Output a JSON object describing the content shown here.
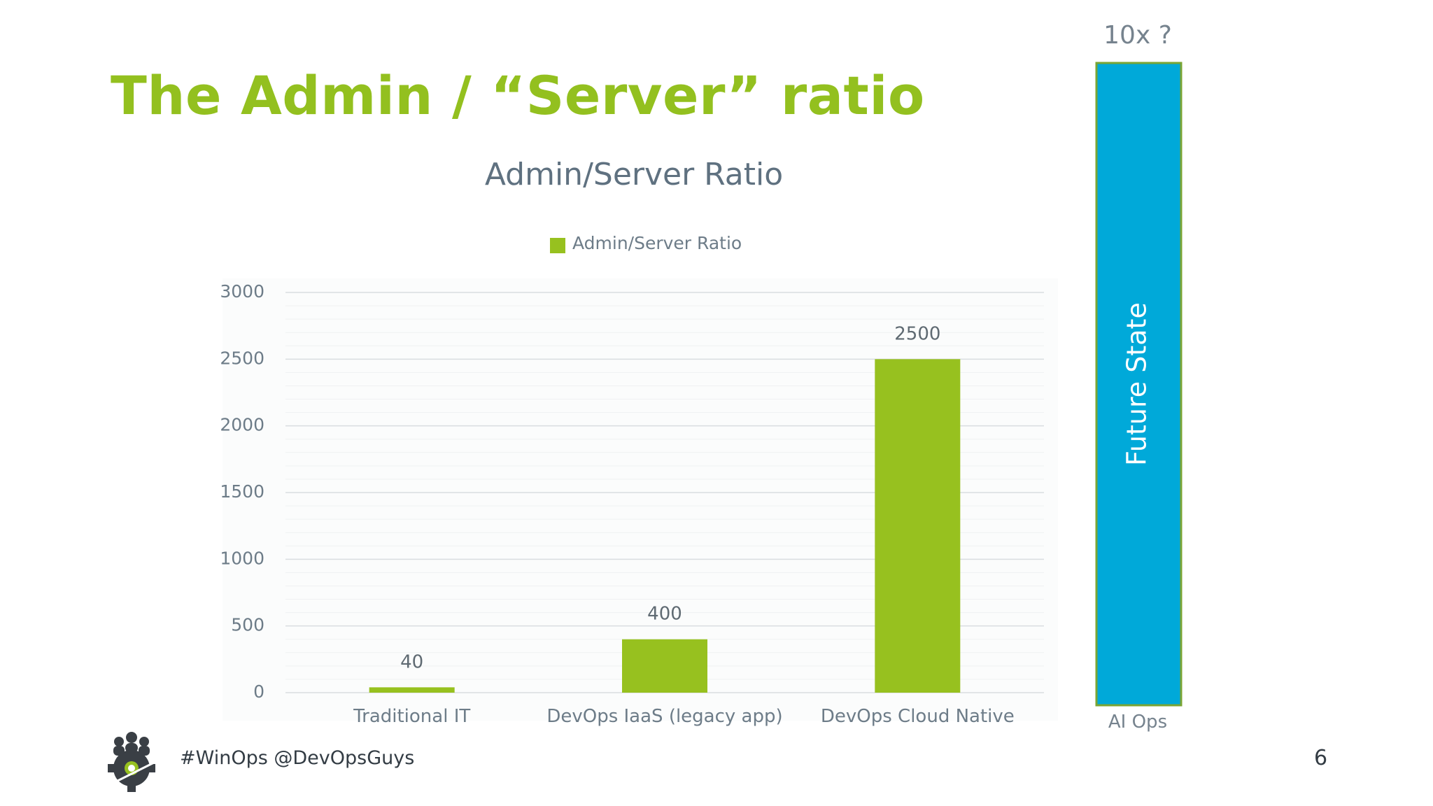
{
  "slide": {
    "title": "The Admin / “Server” ratio",
    "footer": "#WinOps @DevOpsGuys",
    "page_number": "6",
    "logo_icon": "gear-people-logo-icon"
  },
  "chart_data": [
    {
      "type": "bar",
      "title": "Admin/Server Ratio",
      "legend": {
        "entries": [
          "Admin/Server Ratio"
        ],
        "position": "top"
      },
      "categories": [
        "Traditional IT",
        "DevOps IaaS (legacy app)",
        "DevOps Cloud Native"
      ],
      "series": [
        {
          "name": "Admin/Server Ratio",
          "values": [
            40,
            400,
            2500
          ],
          "color": "#97c11f"
        }
      ],
      "data_labels": [
        "40",
        "400",
        "2500"
      ],
      "yticks": [
        0,
        500,
        1000,
        1500,
        2000,
        2500,
        3000
      ],
      "ylim": [
        0,
        3000
      ],
      "grid": true
    },
    {
      "type": "bar",
      "categories": [
        "AI Ops"
      ],
      "annotation_top": "10x ?",
      "bar_label": "Future State",
      "color": "#00a9d9",
      "border_color": "#7aa534"
    }
  ]
}
